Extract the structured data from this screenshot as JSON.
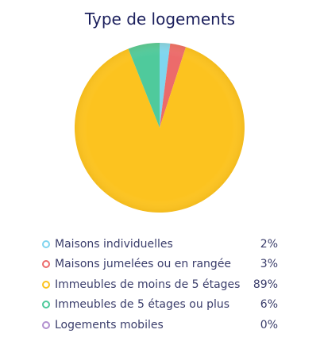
{
  "chart_data": {
    "type": "pie",
    "title": "Type de logements",
    "legend_position": "bottom",
    "slices": [
      {
        "label": "Maisons individuelles",
        "value": 2,
        "display": "2%",
        "color": "#7fd5ef"
      },
      {
        "label": "Maisons jumelées ou en rangée",
        "value": 3,
        "display": "3%",
        "color": "#ec6b6b"
      },
      {
        "label": "Immeubles de moins de 5 étages",
        "value": 89,
        "display": "89%",
        "color": "#fcc31f"
      },
      {
        "label": "Immeubles de 5 étages ou plus",
        "value": 6,
        "display": "6%",
        "color": "#4fca9c"
      },
      {
        "label": "Logements mobiles",
        "value": 0,
        "display": "0%",
        "color": "#b18fcf"
      }
    ]
  }
}
